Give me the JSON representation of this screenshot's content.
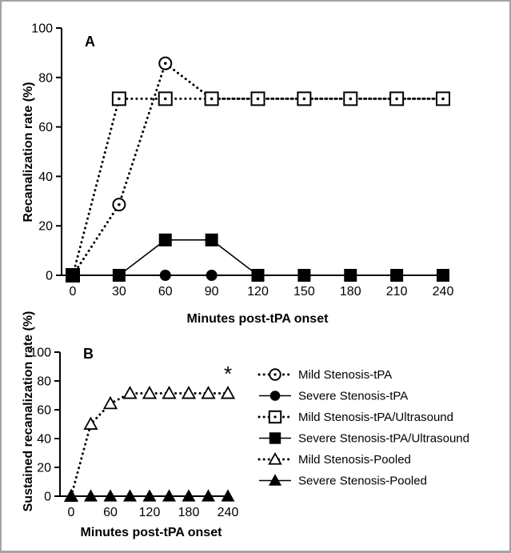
{
  "chart_data": [
    {
      "panel": "A",
      "type": "line",
      "xlabel": "Minutes post-tPA onset",
      "ylabel": "Recanalization rate (%)",
      "x": [
        0,
        30,
        60,
        90,
        120,
        150,
        180,
        210,
        240
      ],
      "xlim": [
        0,
        240
      ],
      "ylim": [
        0,
        100
      ],
      "yticks": [
        0,
        20,
        40,
        60,
        80,
        100
      ],
      "series": [
        {
          "name": "Mild Stenosis-tPA",
          "values": [
            0,
            28.6,
            85.7,
            71.4,
            71.4,
            71.4,
            71.4,
            71.4,
            71.4
          ],
          "line": "dotted",
          "marker": "circle-dot"
        },
        {
          "name": "Severe Stenosis-tPA",
          "values": [
            0,
            0,
            0,
            0,
            0,
            0,
            0,
            0,
            0
          ],
          "line": "solid",
          "marker": "circle-filled"
        },
        {
          "name": "Mild Stenosis-tPA/Ultrasound",
          "values": [
            0,
            71.4,
            71.4,
            71.4,
            71.4,
            71.4,
            71.4,
            71.4,
            71.4
          ],
          "line": "dotted",
          "marker": "square-dot"
        },
        {
          "name": "Severe Stenosis-tPA/Ultrasound",
          "values": [
            0,
            0,
            14.3,
            14.3,
            0,
            0,
            0,
            0,
            0
          ],
          "line": "solid",
          "marker": "square-filled"
        }
      ]
    },
    {
      "panel": "B",
      "type": "line",
      "xlabel": "Minutes post-tPA onset",
      "ylabel": "Sustained recanalization rate (%)",
      "x": [
        0,
        30,
        60,
        90,
        120,
        150,
        180,
        210,
        240
      ],
      "xticks": [
        0,
        60,
        120,
        180,
        240
      ],
      "xlim": [
        0,
        240
      ],
      "ylim": [
        0,
        100
      ],
      "yticks": [
        0,
        20,
        40,
        60,
        80,
        100
      ],
      "annotation": "*",
      "series": [
        {
          "name": "Mild Stenosis-Pooled",
          "values": [
            0,
            50,
            64.3,
            71.4,
            71.4,
            71.4,
            71.4,
            71.4,
            71.4
          ],
          "line": "dotted",
          "marker": "triangle-open"
        },
        {
          "name": "Severe Stenosis-Pooled",
          "values": [
            0,
            0,
            0,
            0,
            0,
            0,
            0,
            0,
            0
          ],
          "line": "solid",
          "marker": "triangle-filled"
        }
      ]
    }
  ],
  "legend": [
    {
      "label": "Mild Stenosis-tPA",
      "line": "dotted",
      "marker": "circle-dot"
    },
    {
      "label": "Severe Stenosis-tPA",
      "line": "solid",
      "marker": "circle-filled"
    },
    {
      "label": "Mild Stenosis-tPA/Ultrasound",
      "line": "dotted",
      "marker": "square-dot"
    },
    {
      "label": "Severe Stenosis-tPA/Ultrasound",
      "line": "solid",
      "marker": "square-filled"
    },
    {
      "label": "Mild Stenosis-Pooled",
      "line": "dotted",
      "marker": "triangle-open"
    },
    {
      "label": "Severe Stenosis-Pooled",
      "line": "solid",
      "marker": "triangle-filled"
    }
  ],
  "colors": {
    "ink": "#000000",
    "frame": "#a3a3a3",
    "background": "#ffffff"
  }
}
